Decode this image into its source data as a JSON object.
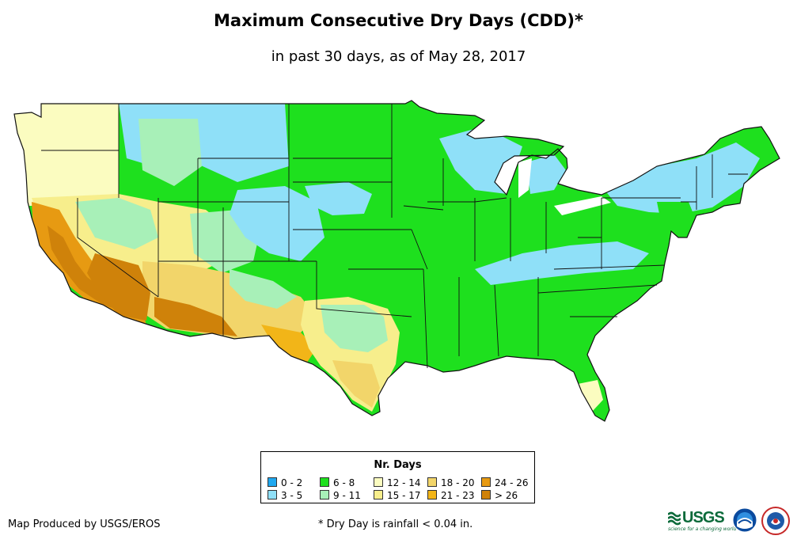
{
  "title": "Maximum Consecutive Dry Days (CDD)*",
  "subtitle": "in past 30 days, as of May 28, 2017",
  "legend": {
    "title": "Nr. Days",
    "items": [
      {
        "label": "0 - 2",
        "color": "#1fa8f0"
      },
      {
        "label": "3 - 5",
        "color": "#8fe0f8"
      },
      {
        "label": "6 - 8",
        "color": "#1ee01e"
      },
      {
        "label": "9 - 11",
        "color": "#a8f0b8"
      },
      {
        "label": "12 - 14",
        "color": "#fbfcc0"
      },
      {
        "label": "15 - 17",
        "color": "#f7ee8c"
      },
      {
        "label": "18 - 20",
        "color": "#f2d56a"
      },
      {
        "label": "21 - 23",
        "color": "#f2b518"
      },
      {
        "label": "24 - 26",
        "color": "#e79a12"
      },
      {
        "label": "> 26",
        "color": "#cf820a"
      }
    ]
  },
  "footer": {
    "credit": "Map Produced by USGS/EROS",
    "note": "* Dry Day is rainfall < 0.04 in."
  },
  "logos": {
    "usgs": "USGS",
    "usgs_tagline": "science for a changing world"
  }
}
